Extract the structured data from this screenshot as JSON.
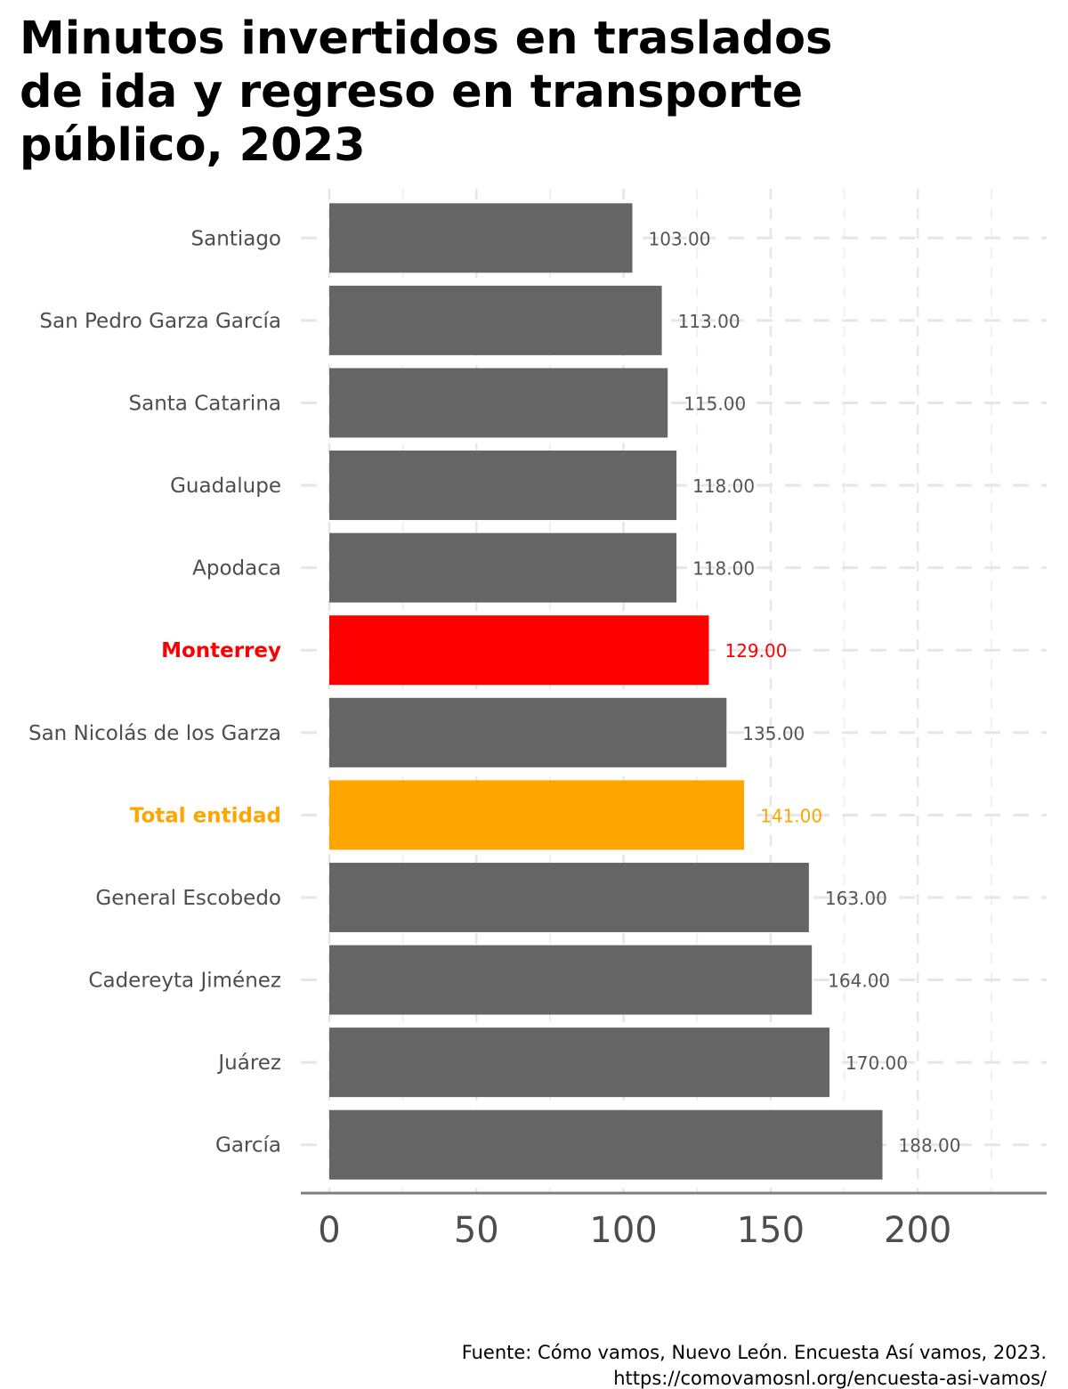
{
  "title_lines": [
    "Minutos invertidos en traslados",
    "de ida y regreso en transporte",
    "público, 2023"
  ],
  "caption_lines": [
    "Fuente: Cómo vamos, Nuevo León. Encuesta Así vamos, 2023.",
    "https://comovamosnl.org/encuesta-asi-vamos/"
  ],
  "colors": {
    "default": "#656565",
    "monterrey": "#ff0000",
    "total": "#ffa500"
  },
  "chart_data": {
    "type": "bar",
    "orientation": "horizontal",
    "title": "Minutos invertidos en traslados de ida y regreso en transporte público, 2023",
    "xlabel": "",
    "ylabel": "",
    "xlim": [
      0,
      240
    ],
    "xticks": [
      0,
      50,
      100,
      150,
      200
    ],
    "grid": true,
    "categories": [
      "Santiago",
      "San Pedro Garza García",
      "Santa Catarina",
      "Guadalupe",
      "Apodaca",
      "Monterrey",
      "San Nicolás de los Garza",
      "Total entidad",
      "General Escobedo",
      "Cadereyta Jiménez",
      "Juárez",
      "García"
    ],
    "values": [
      103,
      113,
      115,
      118,
      118,
      129,
      135,
      141,
      163,
      164,
      170,
      188
    ],
    "labels": [
      "103.00",
      "113.00",
      "115.00",
      "118.00",
      "118.00",
      "129.00",
      "135.00",
      "141.00",
      "163.00",
      "164.00",
      "170.00",
      "188.00"
    ],
    "highlight": {
      "Monterrey": "#ff0000",
      "Total entidad": "#ffa500"
    }
  }
}
